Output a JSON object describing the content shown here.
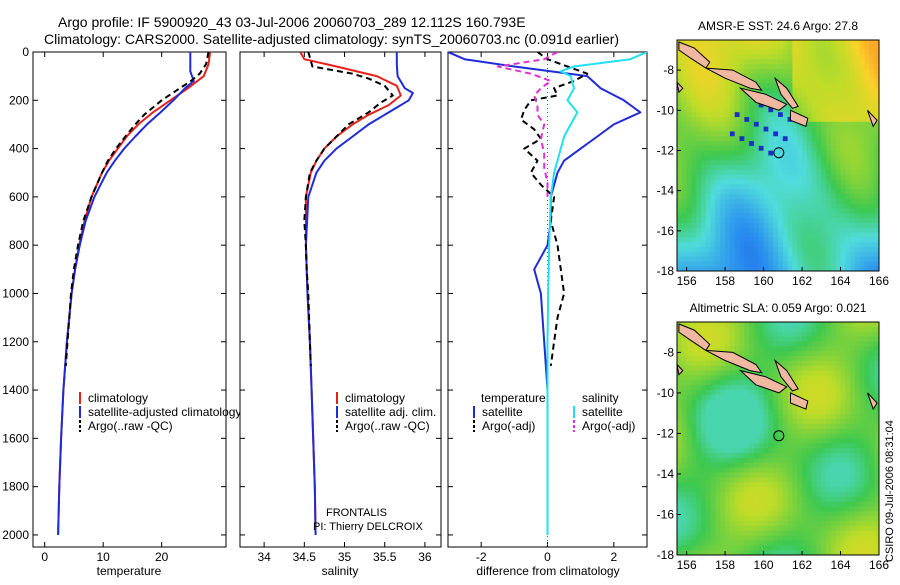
{
  "titles": {
    "line1": "Argo profile: IF 5900920_43 03-Jul-2006 20060703_289 12.112S 160.793E",
    "line2": "Climatology: CARS2000. Satellite-adjusted climatology: synTS_20060703.nc (0.091d earlier)"
  },
  "colors": {
    "climatology": "#e8201c",
    "satellite": "#1f2bd6",
    "argo": "#000000",
    "sat_salinity": "#22e0f0",
    "argo_salinity": "#e030d0"
  },
  "chart_data": [
    {
      "type": "line",
      "id": "temperature",
      "xlabel": "temperature",
      "ylabel": "",
      "xlim": [
        -2,
        31
      ],
      "ylim": [
        2050,
        0
      ],
      "xticks": [
        0,
        10,
        20
      ],
      "yticks": [
        0,
        200,
        400,
        600,
        800,
        1000,
        1200,
        1400,
        1600,
        1800,
        2000
      ],
      "series": [
        {
          "name": "climatology",
          "color": "#e8201c",
          "dash": "",
          "depth": [
            0,
            50,
            100,
            150,
            200,
            250,
            300,
            350,
            400,
            450,
            500,
            600,
            700,
            800,
            900,
            1000,
            1200,
            1400,
            1600,
            1800,
            2000
          ],
          "values": [
            28.3,
            28.0,
            27.2,
            24.5,
            21.5,
            18.5,
            16.0,
            14.0,
            12.5,
            11.0,
            9.8,
            8.0,
            6.8,
            5.9,
            5.2,
            4.6,
            3.8,
            3.2,
            2.8,
            2.5,
            2.3
          ]
        },
        {
          "name": "satellite-adjusted climatology",
          "color": "#1f2bd6",
          "dash": "",
          "depth": [
            0,
            30,
            80,
            120,
            150,
            200,
            250,
            300,
            350,
            400,
            450,
            500,
            600,
            700,
            800,
            900,
            1000,
            1200,
            1400,
            1600,
            1800,
            2000
          ],
          "values": [
            24.9,
            24.9,
            24.9,
            25.5,
            24.0,
            22.0,
            19.8,
            17.5,
            15.5,
            13.6,
            12.0,
            10.6,
            8.5,
            7.0,
            6.0,
            5.2,
            4.6,
            3.8,
            3.2,
            2.8,
            2.5,
            2.3
          ]
        },
        {
          "name": "Argo(..raw -QC)",
          "color": "#000000",
          "dash": "6,4",
          "depth": [
            0,
            50,
            90,
            120,
            160,
            200,
            260,
            300,
            350,
            400,
            450,
            500,
            600,
            700,
            800,
            900,
            1000,
            1100,
            1200,
            1300
          ],
          "values": [
            28.0,
            27.6,
            26.5,
            25.0,
            22.5,
            20.0,
            17.0,
            15.5,
            13.8,
            12.2,
            10.8,
            9.8,
            8.0,
            6.6,
            5.7,
            5.0,
            4.5,
            4.2,
            3.9,
            3.6
          ]
        }
      ],
      "legend": [
        "climatology",
        "satellite-adjusted climatology",
        "Argo(..raw -QC)"
      ]
    },
    {
      "type": "line",
      "id": "salinity",
      "xlabel": "salinity",
      "ylabel": "",
      "xlim": [
        33.7,
        36.2
      ],
      "ylim": [
        2050,
        0
      ],
      "xticks": [
        34,
        34.5,
        35,
        35.5,
        36
      ],
      "series": [
        {
          "name": "climatology",
          "color": "#e8201c",
          "dash": "",
          "depth": [
            0,
            30,
            60,
            100,
            140,
            180,
            220,
            260,
            300,
            350,
            400,
            450,
            500,
            600,
            800,
            1000,
            1200,
            1400,
            1600,
            1800,
            2000
          ],
          "values": [
            34.45,
            34.5,
            34.9,
            35.4,
            35.65,
            35.7,
            35.55,
            35.3,
            35.1,
            34.9,
            34.75,
            34.65,
            34.58,
            34.52,
            34.52,
            34.54,
            34.57,
            34.59,
            34.61,
            34.63,
            34.64
          ]
        },
        {
          "name": "satellite adj. clim.",
          "color": "#1f2bd6",
          "dash": "",
          "depth": [
            0,
            50,
            100,
            150,
            170,
            200,
            250,
            300,
            350,
            400,
            450,
            500,
            600,
            800,
            1000,
            1200,
            1400,
            1600,
            1800,
            2000
          ],
          "values": [
            35.65,
            35.65,
            35.66,
            35.75,
            35.85,
            35.8,
            35.55,
            35.3,
            35.1,
            34.9,
            34.75,
            34.65,
            34.55,
            34.52,
            34.54,
            34.57,
            34.59,
            34.61,
            34.63,
            34.64
          ]
        },
        {
          "name": "Argo(..raw -QC)",
          "color": "#000000",
          "dash": "6,4",
          "depth": [
            0,
            60,
            90,
            110,
            140,
            180,
            210,
            250,
            300,
            350,
            400,
            450,
            500,
            600,
            700,
            800,
            900,
            1000,
            1200,
            1300
          ],
          "values": [
            34.55,
            34.6,
            35.1,
            35.3,
            35.5,
            35.6,
            35.45,
            35.3,
            35.05,
            34.9,
            34.75,
            34.65,
            34.57,
            34.52,
            34.5,
            34.52,
            34.53,
            34.55,
            34.57,
            34.58
          ]
        }
      ],
      "legend": [
        "climatology",
        "satellite adj. clim.",
        "Argo(..raw -QC)"
      ]
    },
    {
      "type": "line",
      "id": "difference",
      "xlabel": "difference from climatology",
      "ylabel": "",
      "xlim": [
        -3,
        3
      ],
      "ylim": [
        2050,
        0
      ],
      "xticks": [
        -2,
        0,
        2
      ],
      "series": [
        {
          "name": "temperature satellite",
          "color": "#1f2bd6",
          "dash": "",
          "depth": [
            0,
            30,
            60,
            100,
            150,
            200,
            250,
            300,
            350,
            400,
            450,
            500,
            600,
            700,
            800,
            850,
            900,
            950,
            1000,
            1100,
            1200,
            1400,
            1600,
            1800,
            2000
          ],
          "values": [
            -3.0,
            -2.5,
            -1.0,
            1.2,
            1.6,
            2.3,
            2.8,
            2.0,
            1.5,
            1.0,
            0.5,
            0.3,
            0.1,
            0.1,
            0,
            -0.2,
            -0.4,
            -0.3,
            -0.2,
            -0.15,
            -0.1,
            0,
            0,
            0,
            0
          ]
        },
        {
          "name": "temperature Argo(-adj)",
          "color": "#000000",
          "dash": "6,4",
          "depth": [
            0,
            30,
            60,
            90,
            120,
            150,
            180,
            200,
            240,
            280,
            320,
            360,
            400,
            450,
            500,
            550,
            600,
            700,
            800,
            900,
            1000,
            1100,
            1200,
            1300
          ],
          "values": [
            -0.3,
            0.0,
            0.6,
            1.2,
            0.8,
            0.2,
            0.3,
            -0.5,
            -0.7,
            -0.8,
            -0.4,
            -0.2,
            -0.7,
            -0.3,
            -0.5,
            -0.2,
            0.2,
            0.1,
            0.3,
            0.4,
            0.5,
            0.3,
            0.2,
            0.1
          ]
        },
        {
          "name": "salinity satellite",
          "color": "#22e0f0",
          "dash": "",
          "depth": [
            0,
            30,
            60,
            80,
            100,
            150,
            200,
            250,
            300,
            350,
            400,
            500,
            600,
            800,
            1000,
            1200,
            1400,
            1600,
            1800,
            2000
          ],
          "values": [
            3.0,
            2.5,
            0.8,
            0.4,
            0.7,
            0.8,
            0.6,
            0.9,
            0.7,
            0.5,
            0.4,
            0.2,
            0.1,
            0.05,
            0.02,
            0,
            0,
            0,
            0,
            0
          ]
        },
        {
          "name": "salinity Argo(-adj)",
          "color": "#e030d0",
          "dash": "6,4",
          "depth": [
            0,
            30,
            60,
            90,
            120,
            150,
            180,
            220,
            260,
            300,
            360,
            420,
            480,
            540,
            600
          ],
          "values": [
            0.3,
            -0.1,
            -1.5,
            -0.5,
            0.1,
            -0.2,
            -0.4,
            -0.3,
            -0.3,
            -0.1,
            -0.2,
            -0.1,
            -0.1,
            0,
            0
          ]
        }
      ],
      "legend": [
        "temperature",
        "salinity",
        "satellite",
        "satellite",
        "Argo(-adj)",
        "Argo(-adj)"
      ]
    },
    {
      "type": "heatmap",
      "id": "sst_map",
      "title": "AMSR-E SST: 24.6 Argo: 27.8",
      "xlim": [
        155.5,
        166
      ],
      "ylim": [
        -18,
        -6.5
      ],
      "xticks": [
        156,
        158,
        160,
        162,
        164,
        166
      ],
      "yticks": [
        -8,
        -10,
        -12,
        -14,
        -16,
        -18
      ]
    },
    {
      "type": "heatmap",
      "id": "sla_map",
      "title": "Altimetric SLA: 0.059 Argo: 0.021",
      "xlim": [
        155.5,
        166
      ],
      "ylim": [
        -18,
        -6.5
      ],
      "xticks": [
        156,
        158,
        160,
        162,
        164,
        166
      ],
      "yticks": [
        -8,
        -10,
        -12,
        -14,
        -16,
        -18
      ]
    }
  ],
  "annotations": {
    "frontalis": "FRONTALIS",
    "pi": "PI: Thierry DELCROIX",
    "stamp": "CSIRO 09-Jul-2006 08:31:04"
  }
}
